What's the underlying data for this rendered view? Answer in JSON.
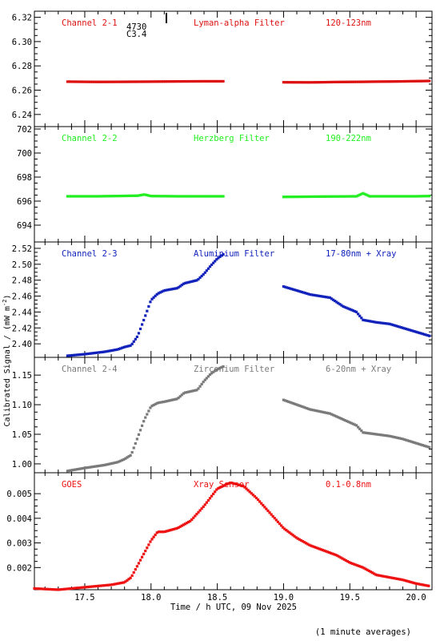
{
  "ylabel": "Calibrated Signal / (mW m",
  "ylabel_sup": "-2",
  "ylabel_end": ")",
  "xlabel": "Time / h UTC, 09 Nov 2025",
  "footnote": "(1 minute averages)",
  "annotation_top": [
    "4730",
    "C3.4"
  ],
  "chart_data": [
    {
      "type": "scatter",
      "channel": "Channel 2-1",
      "filter": "Lyman-alpha Filter",
      "band": "120-123nm",
      "color": "#dd1111",
      "ylim": [
        6.23,
        6.325
      ],
      "yticks": [
        6.24,
        6.26,
        6.28,
        6.3,
        6.32
      ],
      "ytick_labels": [
        "6.24",
        "6.26",
        "6.28",
        "6.30",
        "6.32"
      ],
      "segments": [
        {
          "x": [
            17.37,
            17.6,
            17.8,
            18.0,
            18.2,
            18.4,
            18.55
          ],
          "y": [
            6.267,
            6.2668,
            6.2669,
            6.267,
            6.2672,
            6.2673,
            6.2673
          ]
        },
        {
          "x": [
            19.0,
            19.2,
            19.4,
            19.6,
            19.8,
            20.0,
            20.1
          ],
          "y": [
            6.2665,
            6.2664,
            6.2667,
            6.2669,
            6.2671,
            6.2674,
            6.2676
          ]
        }
      ]
    },
    {
      "type": "scatter",
      "channel": "Channel 2-2",
      "filter": "Herzberg Filter",
      "band": "190-222nm",
      "color": "#22ee22",
      "ylim": [
        692.6,
        702.2
      ],
      "yticks": [
        694,
        696,
        698,
        700,
        702
      ],
      "ytick_labels": [
        "694",
        "696",
        "698",
        "700",
        "702"
      ],
      "segments": [
        {
          "x": [
            17.37,
            17.6,
            17.9,
            17.95,
            18.0,
            18.2,
            18.4,
            18.55
          ],
          "y": [
            696.4,
            696.4,
            696.45,
            696.55,
            696.42,
            696.4,
            696.4,
            696.4
          ]
        },
        {
          "x": [
            19.0,
            19.3,
            19.55,
            19.6,
            19.65,
            19.8,
            20.0,
            20.1
          ],
          "y": [
            696.35,
            696.38,
            696.4,
            696.65,
            696.4,
            696.4,
            696.4,
            696.42
          ]
        }
      ]
    },
    {
      "type": "scatter",
      "channel": "Channel 2-3",
      "filter": "Aluminium Filter",
      "band": "17-80nm + Xray",
      "color": "#1122bb",
      "ylim": [
        2.383,
        2.528
      ],
      "yticks": [
        2.4,
        2.42,
        2.44,
        2.46,
        2.48,
        2.5,
        2.52
      ],
      "ytick_labels": [
        "2.40",
        "2.42",
        "2.44",
        "2.46",
        "2.48",
        "2.50",
        "2.52"
      ],
      "segments": [
        {
          "x": [
            17.37,
            17.5,
            17.65,
            17.75,
            17.8,
            17.85,
            17.9,
            17.95,
            18.0,
            18.05,
            18.1,
            18.2,
            18.25,
            18.35,
            18.4,
            18.45,
            18.5,
            18.55
          ],
          "y": [
            2.385,
            2.387,
            2.39,
            2.393,
            2.396,
            2.398,
            2.41,
            2.432,
            2.455,
            2.463,
            2.467,
            2.47,
            2.476,
            2.48,
            2.488,
            2.498,
            2.507,
            2.513
          ]
        },
        {
          "x": [
            19.0,
            19.1,
            19.2,
            19.35,
            19.45,
            19.55,
            19.6,
            19.7,
            19.8,
            19.9,
            20.0,
            20.1
          ],
          "y": [
            2.472,
            2.467,
            2.462,
            2.458,
            2.447,
            2.44,
            2.43,
            2.427,
            2.425,
            2.42,
            2.415,
            2.41
          ]
        }
      ]
    },
    {
      "type": "scatter",
      "channel": "Channel 2-4",
      "filter": "Zirconium Filter",
      "band": "6-20nm + Xray",
      "color": "#7a7a7a",
      "ylim": [
        0.985,
        1.18
      ],
      "yticks": [
        1.0,
        1.05,
        1.1,
        1.15
      ],
      "ytick_labels": [
        "1.00",
        "1.05",
        "1.10",
        "1.15"
      ],
      "segments": [
        {
          "x": [
            17.37,
            17.5,
            17.65,
            17.75,
            17.8,
            17.85,
            17.9,
            17.95,
            18.0,
            18.05,
            18.1,
            18.2,
            18.25,
            18.35,
            18.4,
            18.45,
            18.5,
            18.55
          ],
          "y": [
            0.988,
            0.993,
            0.998,
            1.003,
            1.008,
            1.015,
            1.045,
            1.075,
            1.097,
            1.103,
            1.105,
            1.11,
            1.12,
            1.125,
            1.14,
            1.152,
            1.16,
            1.165
          ]
        },
        {
          "x": [
            19.0,
            19.1,
            19.2,
            19.35,
            19.45,
            19.55,
            19.6,
            19.7,
            19.8,
            19.9,
            20.0,
            20.1
          ],
          "y": [
            1.108,
            1.1,
            1.092,
            1.085,
            1.075,
            1.065,
            1.053,
            1.05,
            1.047,
            1.042,
            1.035,
            1.028
          ]
        }
      ]
    },
    {
      "type": "scatter",
      "channel": "GOES",
      "filter": "Xray Sensor",
      "band": "0.1-0.8nm",
      "color": "#ee1111",
      "ylim": [
        0.0011,
        0.00585
      ],
      "yticks": [
        0.002,
        0.003,
        0.004,
        0.005
      ],
      "ytick_labels": [
        "0.002",
        "0.003",
        "0.004",
        "0.005"
      ],
      "segments": [
        {
          "x": [
            17.12,
            17.3,
            17.5,
            17.6,
            17.7,
            17.8,
            17.85,
            17.9,
            17.95,
            18.0,
            18.05,
            18.1,
            18.2,
            18.3,
            18.4,
            18.5,
            18.6,
            18.7,
            18.8,
            18.9,
            19.0,
            19.1,
            19.2,
            19.3,
            19.4,
            19.5,
            19.6,
            19.7,
            19.8,
            19.9,
            20.0,
            20.1
          ],
          "y": [
            0.00115,
            0.0011,
            0.0012,
            0.00125,
            0.0013,
            0.0014,
            0.0016,
            0.0021,
            0.0026,
            0.0031,
            0.00345,
            0.00345,
            0.0036,
            0.0039,
            0.0045,
            0.0052,
            0.00545,
            0.0053,
            0.0048,
            0.0042,
            0.0036,
            0.0032,
            0.0029,
            0.0027,
            0.0025,
            0.0022,
            0.002,
            0.0017,
            0.0016,
            0.0015,
            0.00135,
            0.00125
          ]
        }
      ]
    }
  ],
  "xaxis": {
    "xlim": [
      17.12,
      20.12
    ],
    "ticks": [
      17.5,
      18.0,
      18.5,
      19.0,
      19.5,
      20.0
    ],
    "tick_labels": [
      "17.5",
      "18.0",
      "18.5",
      "19.0",
      "19.5",
      "20.0"
    ]
  }
}
